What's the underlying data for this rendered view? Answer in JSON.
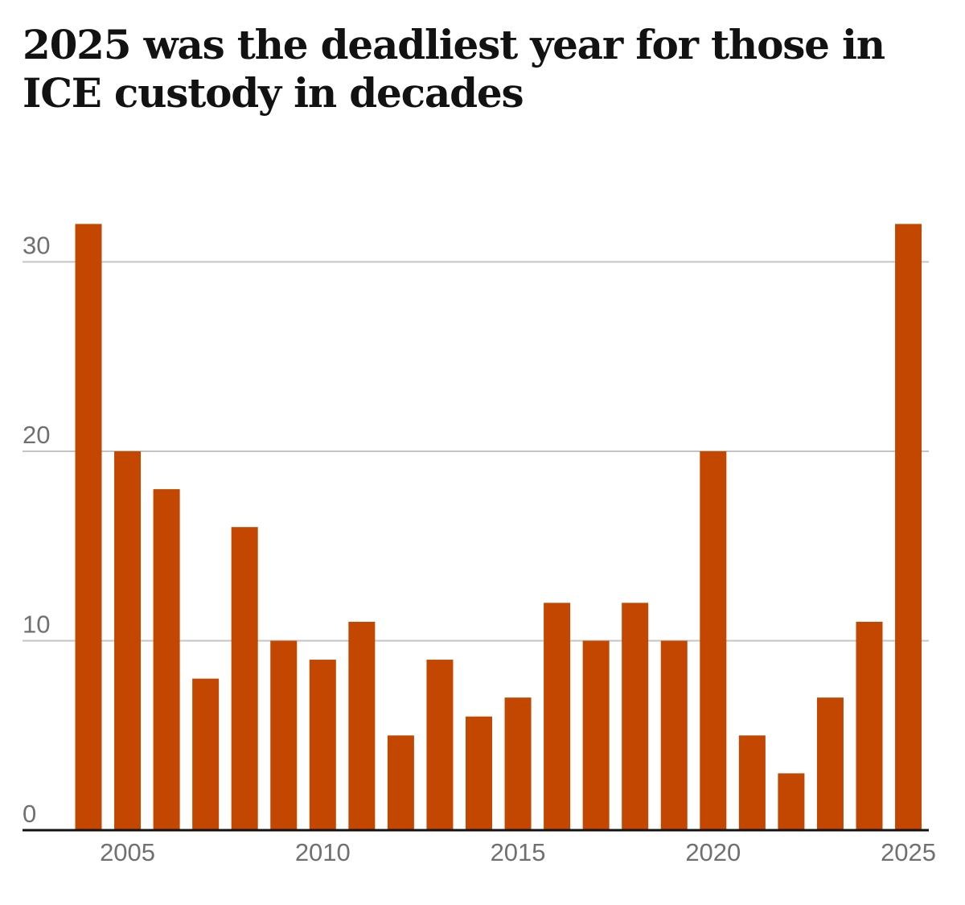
{
  "chart_data": {
    "type": "bar",
    "title": "2025 was the deadliest year for those in ICE custody in decades",
    "xlabel": "",
    "ylabel": "",
    "categories": [
      2004,
      2005,
      2006,
      2007,
      2008,
      2009,
      2010,
      2011,
      2012,
      2013,
      2014,
      2015,
      2016,
      2017,
      2018,
      2019,
      2020,
      2021,
      2022,
      2023,
      2024,
      2025
    ],
    "values": [
      32,
      20,
      18,
      8,
      16,
      10,
      9,
      11,
      5,
      9,
      6,
      7,
      12,
      10,
      12,
      10,
      20,
      5,
      3,
      7,
      11,
      32
    ],
    "x_tick_labels": [
      "2005",
      "2010",
      "2015",
      "2020",
      "2025"
    ],
    "y_tick_labels": [
      "0",
      "10",
      "20",
      "30"
    ],
    "y_ticks": [
      0,
      10,
      20,
      30
    ],
    "ylim": [
      0,
      32
    ],
    "grid": "horizontal",
    "bar_color": "#c44700"
  }
}
